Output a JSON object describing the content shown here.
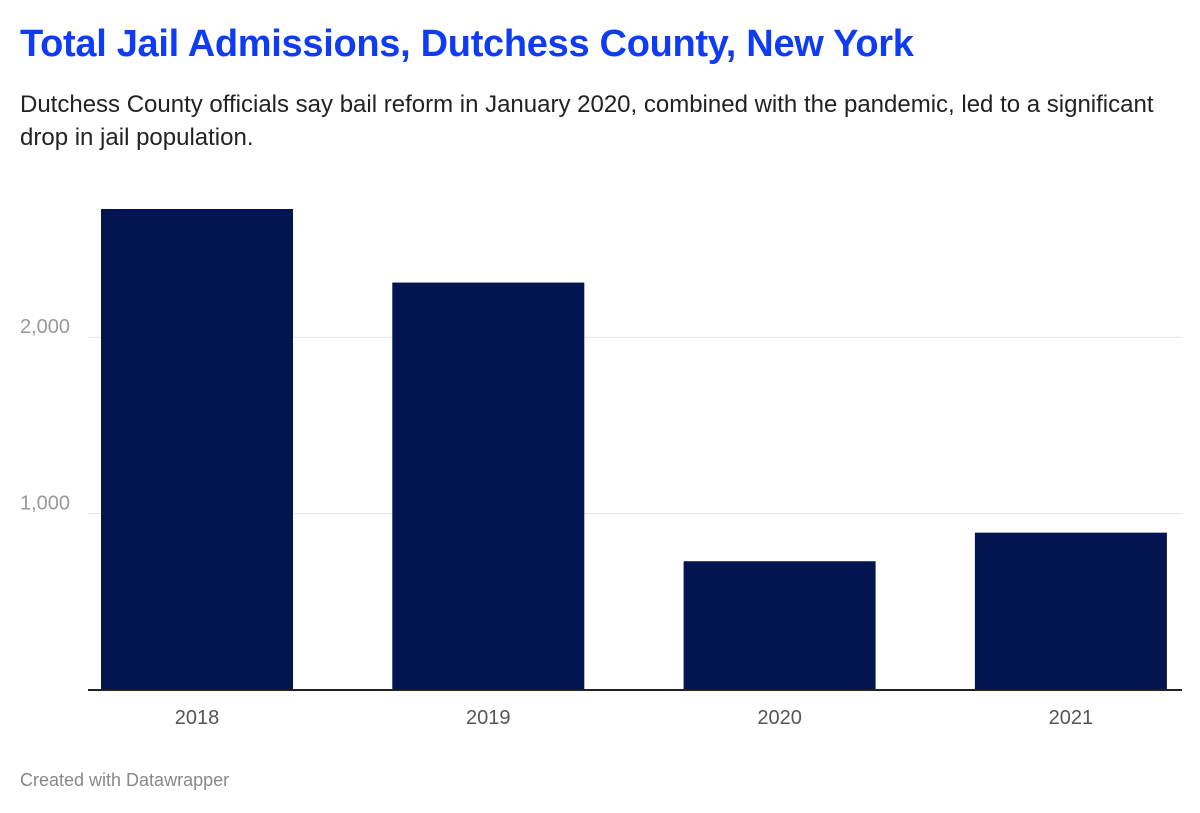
{
  "colors": {
    "title": "#0f3cf2",
    "bar": "#021550",
    "grid": "#e3e3e3",
    "baseline": "#222222"
  },
  "header": {
    "title": "Total Jail Admissions, Dutchess County, New York",
    "subtitle": "Dutchess County officials say bail reform in January 2020, combined with the pandemic, led to a significant drop in jail population."
  },
  "footer": {
    "credit": "Created with Datawrapper"
  },
  "chart_data": {
    "type": "bar",
    "title": "Total Jail Admissions, Dutchess County, New York",
    "xlabel": "",
    "ylabel": "",
    "categories": [
      "2018",
      "2019",
      "2020",
      "2021"
    ],
    "values": [
      2727,
      2310,
      730,
      892
    ],
    "ylim": [
      0,
      2727
    ],
    "yticks": [
      1000,
      2000
    ],
    "ytick_labels": [
      "1,000",
      "2,000"
    ],
    "grid": true,
    "legend": "none"
  }
}
